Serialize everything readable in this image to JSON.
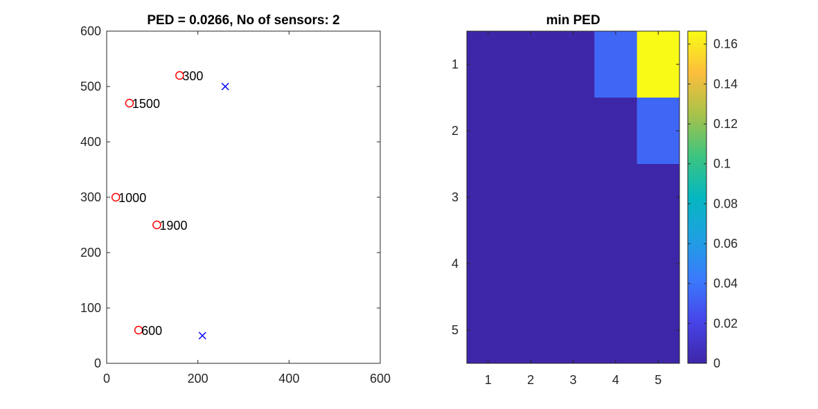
{
  "chart_data": [
    {
      "type": "scatter",
      "title": "PED = 0.0266, No of sensors: 2",
      "xlim": [
        0,
        600
      ],
      "ylim": [
        0,
        600
      ],
      "xticks": [
        0,
        200,
        400,
        600
      ],
      "yticks": [
        0,
        100,
        200,
        300,
        400,
        500,
        600
      ],
      "grid": false,
      "series": [
        {
          "marker": "circle",
          "color": "#ff0000",
          "points": [
            {
              "x": 160,
              "y": 520,
              "label": "300"
            },
            {
              "x": 50,
              "y": 470,
              "label": "1500"
            },
            {
              "x": 20,
              "y": 300,
              "label": "1000"
            },
            {
              "x": 110,
              "y": 250,
              "label": "1900"
            },
            {
              "x": 70,
              "y": 60,
              "label": "600"
            }
          ]
        },
        {
          "marker": "x",
          "color": "#0000ff",
          "points": [
            {
              "x": 260,
              "y": 500
            },
            {
              "x": 210,
              "y": 50
            }
          ]
        }
      ]
    },
    {
      "type": "heatmap",
      "title": "min PED",
      "x_categories": [
        "1",
        "2",
        "3",
        "4",
        "5"
      ],
      "y_categories": [
        "1",
        "2",
        "3",
        "4",
        "5"
      ],
      "values": [
        [
          0,
          0,
          0,
          0.0345,
          0.166
        ],
        [
          0,
          0,
          0,
          0,
          0.0345
        ],
        [
          0,
          0,
          0,
          0,
          0
        ],
        [
          0,
          0,
          0,
          0,
          0
        ],
        [
          0,
          0,
          0,
          0,
          0
        ]
      ],
      "colormap": "parula",
      "colorbar": {
        "range": [
          0,
          0.1665
        ],
        "ticks": [
          0,
          0.02,
          0.04,
          0.06,
          0.08,
          0.1,
          0.12,
          0.14,
          0.16
        ],
        "tick_labels": [
          "0",
          "0.02",
          "0.04",
          "0.06",
          "0.08",
          "0.1",
          "0.12",
          "0.14",
          "0.16"
        ]
      }
    }
  ]
}
